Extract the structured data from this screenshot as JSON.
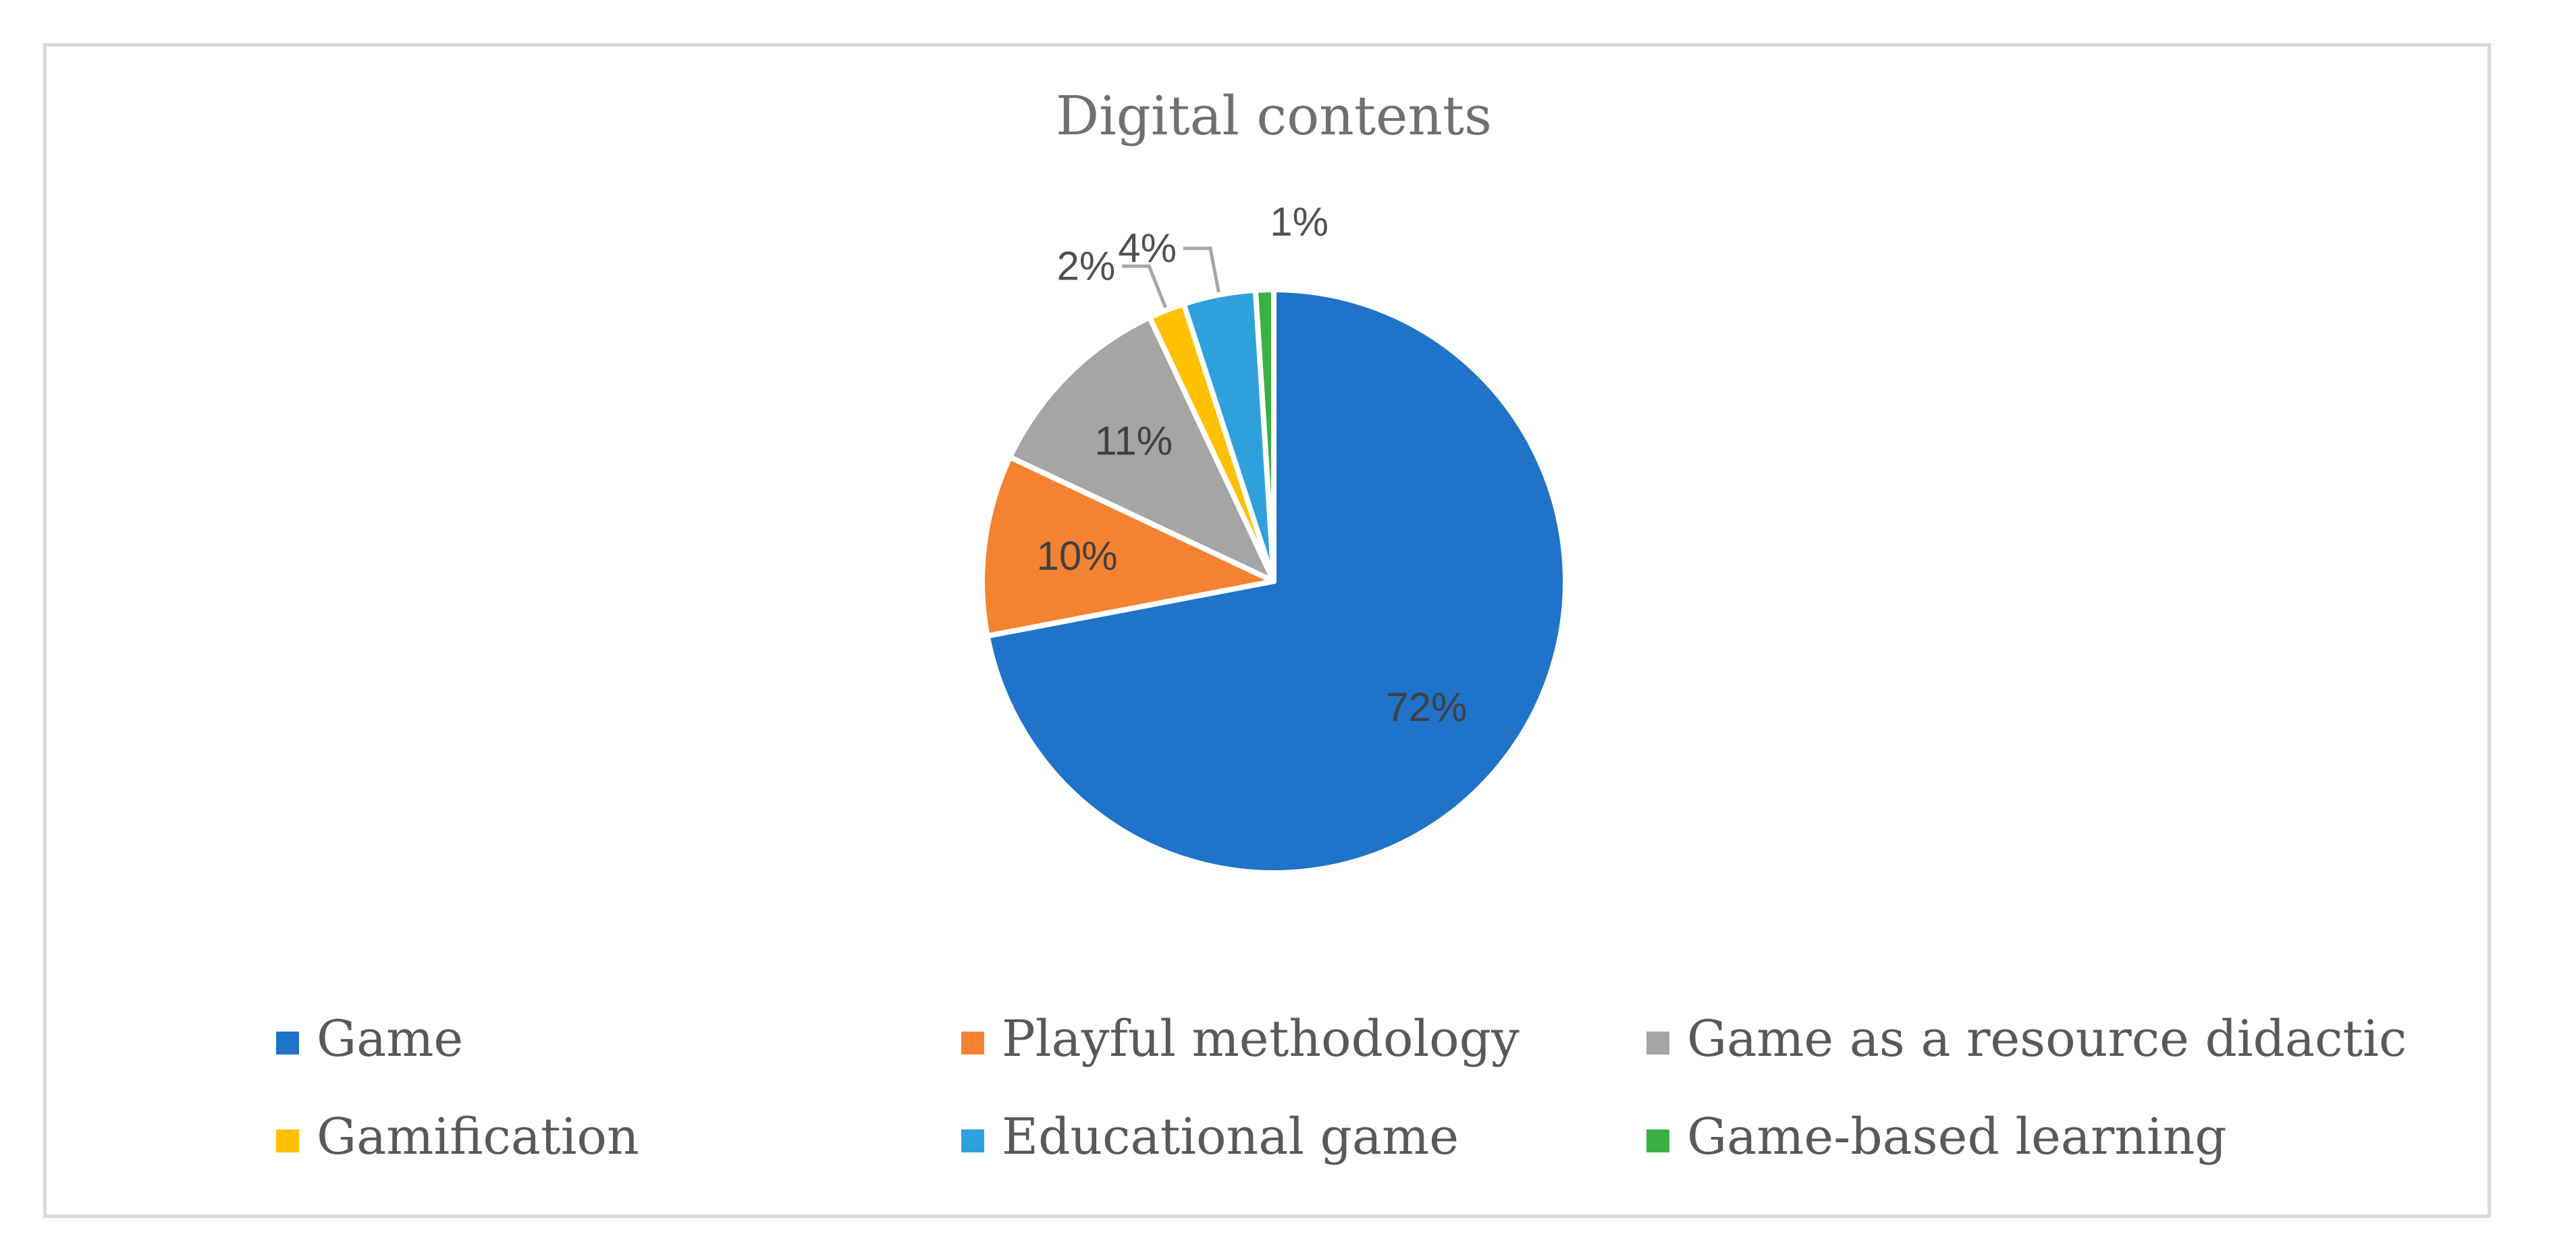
{
  "chart_data": {
    "type": "pie",
    "title": "Digital contents",
    "legend_position": "bottom",
    "slices": [
      {
        "name": "Game",
        "value": 72,
        "label": "72%",
        "color": "#1f73c8"
      },
      {
        "name": "Playful methodology",
        "value": 10,
        "label": "10%",
        "color": "#f58231"
      },
      {
        "name": "Game as a resource didactic",
        "value": 11,
        "label": "11%",
        "color": "#a5a5a5"
      },
      {
        "name": "Gamification",
        "value": 2,
        "label": "2%",
        "color": "#ffc000"
      },
      {
        "name": "Educational game",
        "value": 4,
        "label": "4%",
        "color": "#2ea1dc"
      },
      {
        "name": "Game-based learning",
        "value": 1,
        "label": "1%",
        "color": "#3cb043"
      }
    ]
  }
}
